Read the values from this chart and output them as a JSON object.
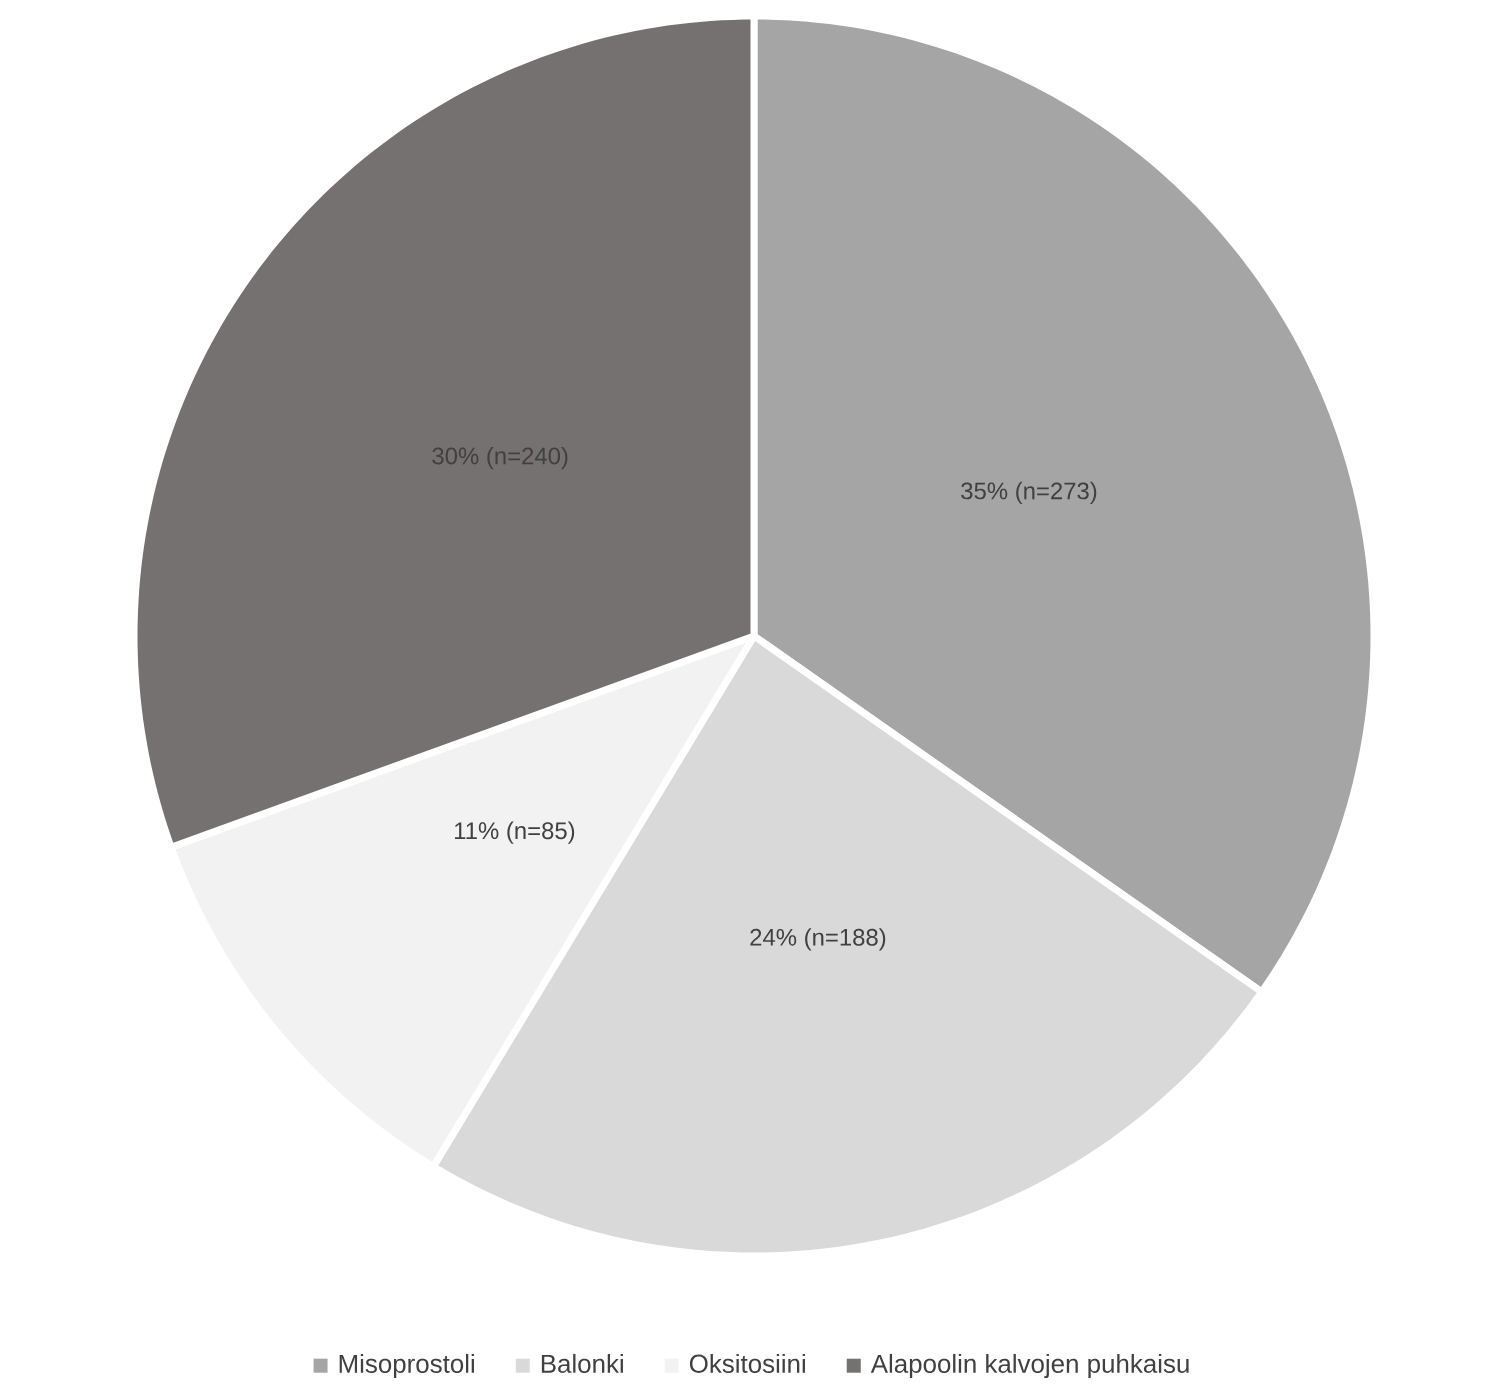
{
  "chart_data": {
    "type": "pie",
    "categories": [
      "Misoprostoli",
      "Balonki",
      "Oksitosiini",
      "Alapoolin kalvojen puhkaisu"
    ],
    "values": [
      273,
      188,
      85,
      240
    ],
    "value_labels": [
      "35% (n=273)",
      "24% (n=188)",
      "11% (n=85)",
      "30% (n=240)"
    ],
    "colors": [
      "#a5a5a5",
      "#d9d9d9",
      "#f2f2f2",
      "#767171"
    ],
    "legend": "bottom"
  }
}
